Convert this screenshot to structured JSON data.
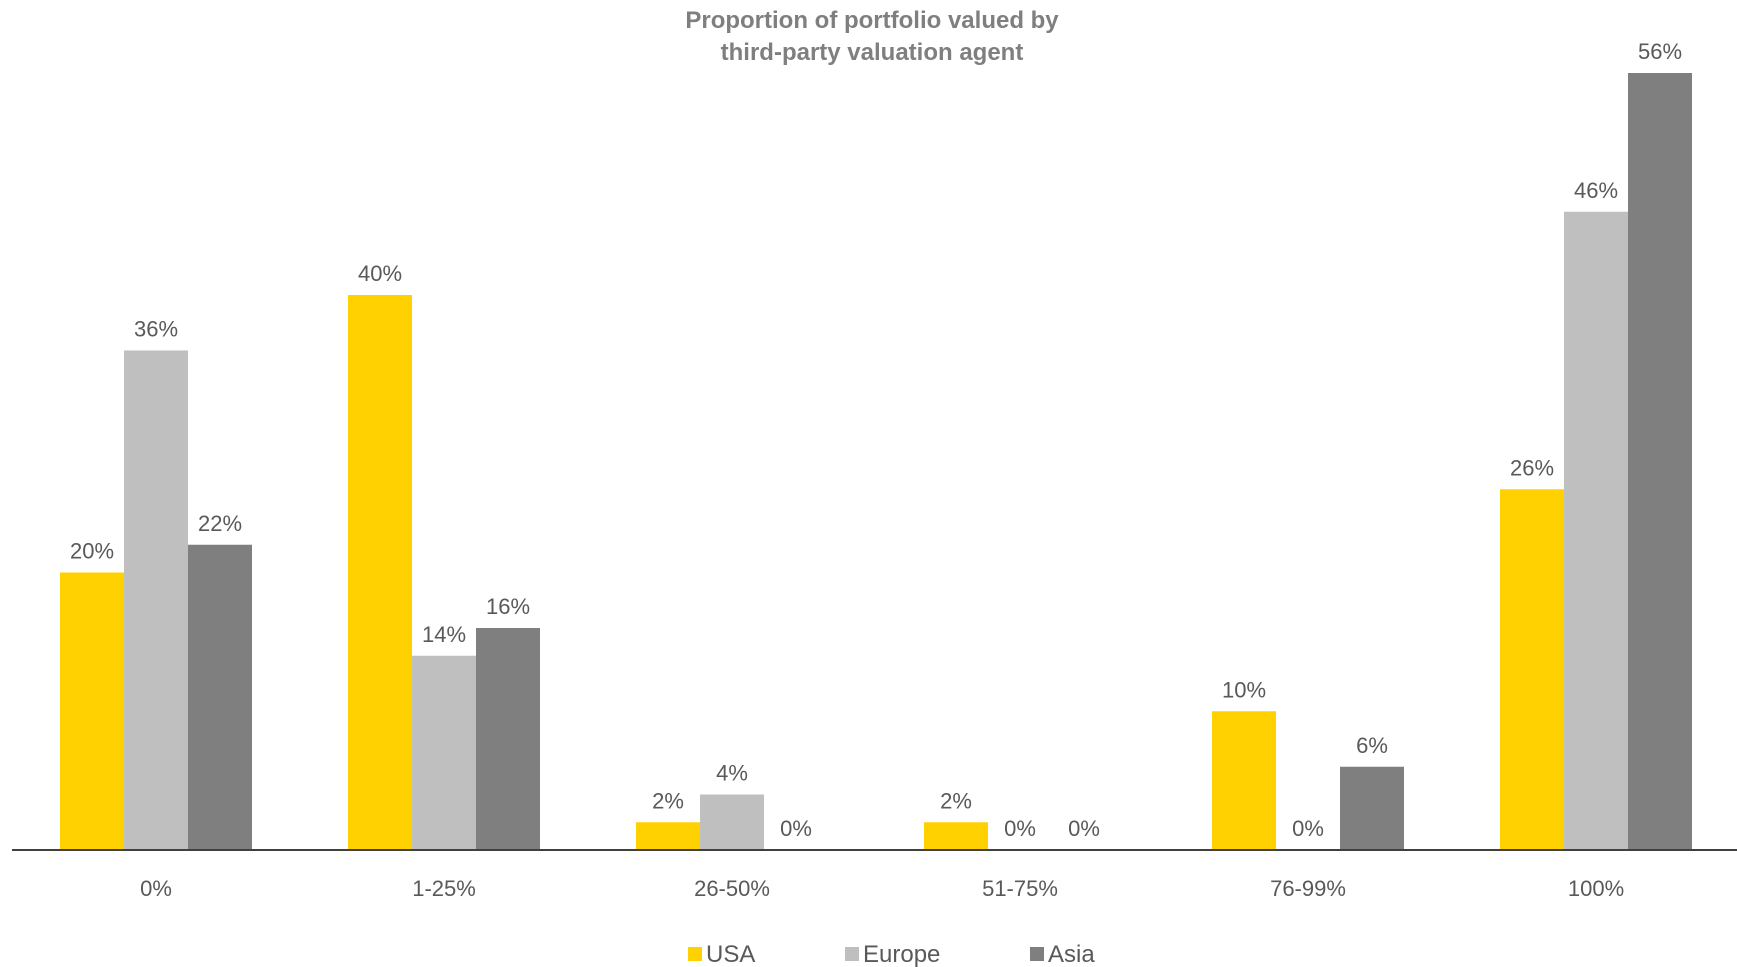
{
  "chart_data": {
    "type": "bar",
    "title": "Proportion of portfolio valued by third-party valuation agent",
    "title_lines": [
      "Proportion of portfolio valued by",
      "third-party valuation agent"
    ],
    "categories": [
      "0%",
      "1-25%",
      "26-50%",
      "51-75%",
      "76-99%",
      "100%"
    ],
    "series": [
      {
        "name": "USA",
        "color": "#ffd100",
        "values": [
          20,
          40,
          2,
          2,
          10,
          26
        ],
        "labels": [
          "20%",
          "40%",
          "2%",
          "2%",
          "10%",
          "26%"
        ]
      },
      {
        "name": "Europe",
        "color": "#bfbfbf",
        "values": [
          36,
          14,
          4,
          0,
          0,
          46
        ],
        "labels": [
          "36%",
          "14%",
          "4%",
          "0%",
          "0%",
          "46%"
        ]
      },
      {
        "name": "Asia",
        "color": "#7f7f7f",
        "values": [
          22,
          16,
          0,
          0,
          6,
          56
        ],
        "labels": [
          "22%",
          "16%",
          "0%",
          "0%",
          "6%",
          "56%"
        ]
      }
    ],
    "ylim": [
      0,
      60
    ],
    "grid": false,
    "legend_position": "bottom",
    "xlabel": "",
    "ylabel": ""
  }
}
